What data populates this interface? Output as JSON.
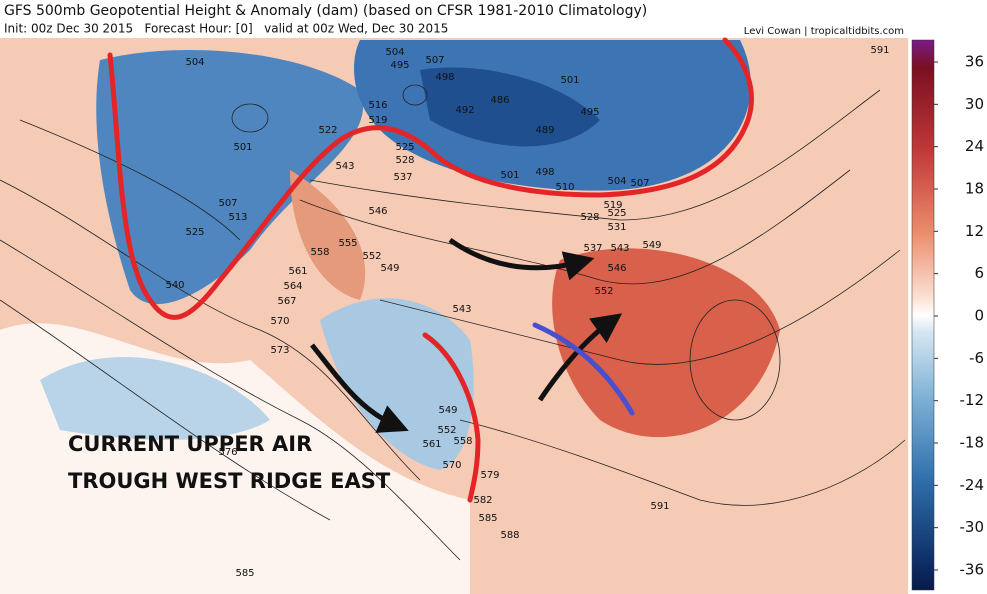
{
  "header": {
    "title": "GFS 500mb Geopotential Height & Anomaly (dam) (based on CFSR 1981-2010 Climatology)",
    "subtitle": "Init: 00z Dec 30 2015   Forecast Hour: [0]   valid at 00z Wed, Dec 30 2015",
    "credit": "Levi Cowan | tropicaltidbits.com"
  },
  "colorbar": {
    "ticks": [
      36,
      30,
      24,
      18,
      12,
      6,
      0,
      -6,
      -12,
      -18,
      -24,
      -30,
      -36
    ]
  },
  "contour_labels": [
    504,
    495,
    504,
    507,
    498,
    486,
    492,
    501,
    489,
    495,
    501,
    507,
    513,
    525,
    516,
    519,
    522,
    525,
    528,
    537,
    543,
    546,
    555,
    558,
    552,
    549,
    561,
    564,
    567,
    570,
    573,
    540,
    543,
    549,
    552,
    561,
    558,
    570,
    579,
    582,
    585,
    588,
    591,
    576,
    585,
    591,
    498,
    501,
    504,
    510,
    507,
    519,
    525,
    528,
    531,
    537,
    543,
    546,
    549,
    552
  ],
  "annotation": {
    "lines": [
      "CURRENT UPPER AIR",
      "TROUGH WEST RIDGE EAST"
    ]
  }
}
